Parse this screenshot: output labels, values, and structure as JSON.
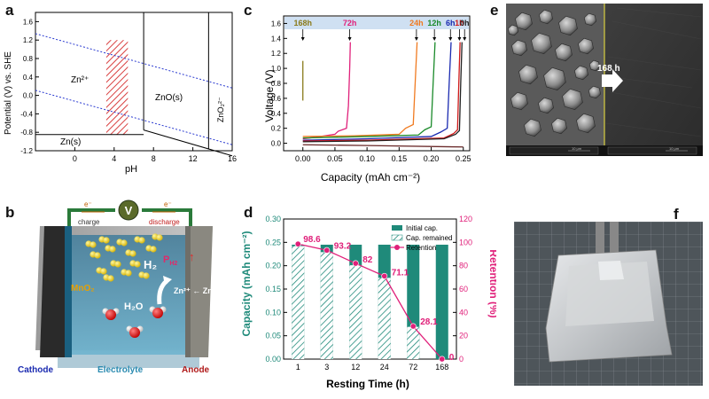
{
  "panel_labels": {
    "a": "a",
    "b": "b",
    "c": "c",
    "d": "d",
    "e": "e",
    "f": "f"
  },
  "panel_a": {
    "ylabel": "Potential (V) vs. SHE",
    "xlabel": "pH",
    "xticks": [
      "0",
      "4",
      "8",
      "12",
      "16"
    ],
    "yticks": [
      "1.6",
      "1.2",
      "0.8",
      "0.4",
      "0.0",
      "-0.4",
      "-0.8",
      "-1.2"
    ],
    "regions": {
      "zn2": "Zn²⁺",
      "zno": "ZnO(s)",
      "zn": "Zn(s)",
      "zno2": "ZnO₂²⁻"
    }
  },
  "panel_b": {
    "voltmeter": "V",
    "electron_left": "e⁻",
    "electron_right": "e⁻",
    "charge": "charge",
    "discharge": "discharge",
    "mno2": "MnO₂",
    "h2": "H₂",
    "ph2": "P",
    "ph2_sub": "H2",
    "up_arrow": "↑",
    "zn2_zn": "Zn²⁺ ← Zn",
    "h2o": "H₂O",
    "cathode": "Cathode",
    "electrolyte": "Electrolyte",
    "anode": "Anode"
  },
  "panel_c": {
    "ylabel": "Voltage (V)",
    "xlabel": "Capacity (mAh cm⁻²)",
    "xticks": [
      "0.00",
      "0.05",
      "0.10",
      "0.15",
      "0.20",
      "0.25"
    ],
    "yticks": [
      "0.0",
      "0.2",
      "0.4",
      "0.6",
      "0.8",
      "1.0",
      "1.2",
      "1.4",
      "1.6"
    ],
    "time_labels": [
      {
        "text": "168h",
        "color": "#8a7a1a"
      },
      {
        "text": "72h",
        "color": "#e0207a"
      },
      {
        "text": "24h",
        "color": "#f07a20"
      },
      {
        "text": "12h",
        "color": "#1a8a2a"
      },
      {
        "text": "6h",
        "color": "#1a2ab0"
      },
      {
        "text": "1h",
        "color": "#d01a1a"
      },
      {
        "text": "0h",
        "color": "#222222"
      }
    ]
  },
  "panel_d": {
    "ylabel_left": "Capacity (mAh cm⁻²)",
    "ylabel_right": "Retention (%)",
    "xlabel": "Resting Time (h)",
    "legend": [
      "Initial cap.",
      "Cap. remained",
      "Retention"
    ],
    "point_labels": [
      "98.6",
      "93.2",
      "82",
      "71.1",
      "28.1",
      "0"
    ]
  },
  "panel_e": {
    "label": "168 h",
    "scale_text": "10 μm"
  },
  "chart_data": [
    {
      "type": "line",
      "title": "",
      "xlabel": "pH",
      "ylabel": "Potential (V) vs. SHE",
      "xlim": [
        -4,
        16
      ],
      "ylim": [
        -1.2,
        1.8
      ],
      "series": [
        {
          "x": [
            -4,
            16
          ],
          "y": [
            1.34,
            0.16
          ]
        },
        {
          "x": [
            -4,
            16
          ],
          "y": [
            0.11,
            -1.07
          ]
        },
        {
          "x": [
            -4,
            7
          ],
          "y": [
            -0.85,
            -0.85
          ]
        },
        {
          "x": [
            7,
            16
          ],
          "y": [
            -0.75,
            -1.31
          ]
        },
        {
          "x": [
            7,
            7
          ],
          "y": [
            -0.75,
            1.8
          ]
        },
        {
          "x": [
            13.6,
            13.6
          ],
          "y": [
            -1.17,
            1.8
          ]
        }
      ],
      "hatched_region": {
        "x": [
          3.2,
          5.4
        ],
        "y": [
          -0.85,
          1.2
        ]
      }
    },
    {
      "type": "line",
      "title": "",
      "xlabel": "Capacity (mAh cm⁻²)",
      "ylabel": "Voltage (V)",
      "xlim": [
        -0.03,
        0.26
      ],
      "ylim": [
        -0.1,
        1.7
      ],
      "series": [
        {
          "name": "168h",
          "color": "#8a7a1a",
          "x": [
            0.0,
            0.0
          ],
          "y": [
            0.57,
            1.1
          ]
        },
        {
          "name": "72h",
          "color": "#e0207a",
          "x": [
            0.0,
            0.02,
            0.05,
            0.055,
            0.068,
            0.071,
            0.073,
            0.074
          ],
          "y": [
            0.06,
            0.08,
            0.12,
            0.16,
            0.2,
            0.5,
            1.0,
            1.35
          ]
        },
        {
          "name": "24h",
          "color": "#f07a20",
          "x": [
            0.0,
            0.08,
            0.15,
            0.16,
            0.172,
            0.175,
            0.178
          ],
          "y": [
            0.09,
            0.1,
            0.12,
            0.2,
            0.25,
            0.8,
            1.35
          ]
        },
        {
          "name": "12h",
          "color": "#1a8a2a",
          "x": [
            0.0,
            0.1,
            0.18,
            0.19,
            0.2,
            0.203,
            0.206
          ],
          "y": [
            0.07,
            0.09,
            0.11,
            0.18,
            0.22,
            0.8,
            1.35
          ]
        },
        {
          "name": "6h",
          "color": "#1a2ab0",
          "x": [
            0.0,
            0.1,
            0.2,
            0.215,
            0.225,
            0.228,
            0.231
          ],
          "y": [
            0.04,
            0.06,
            0.09,
            0.15,
            0.2,
            0.8,
            1.35
          ]
        },
        {
          "name": "1h",
          "color": "#d01a1a",
          "x": [
            0.0,
            0.1,
            0.22,
            0.235,
            0.241,
            0.243,
            0.245
          ],
          "y": [
            0.03,
            0.04,
            0.07,
            0.13,
            0.18,
            0.8,
            1.35
          ]
        },
        {
          "name": "0h",
          "color": "#222222",
          "x": [
            0.0,
            0.1,
            0.22,
            0.238,
            0.244,
            0.246,
            0.248
          ],
          "y": [
            0.02,
            0.03,
            0.06,
            0.12,
            0.17,
            0.8,
            1.35
          ]
        },
        {
          "name": "discharge",
          "color": "#6a2a2a",
          "x": [
            0.0,
            0.1,
            0.25
          ],
          "y": [
            -0.02,
            -0.03,
            -0.05
          ]
        }
      ]
    },
    {
      "type": "bar",
      "title": "",
      "xlabel": "Resting Time (h)",
      "ylabel": "Capacity (mAh cm⁻²)",
      "ylabel_right": "Retention (%)",
      "categories": [
        "1",
        "3",
        "12",
        "24",
        "72",
        "168"
      ],
      "ylim": [
        0,
        0.3
      ],
      "ylim_right": [
        0,
        120
      ],
      "yticks_left": [
        "0.00",
        "0.05",
        "0.10",
        "0.15",
        "0.20",
        "0.25",
        "0.30"
      ],
      "yticks_right": [
        "0",
        "20",
        "40",
        "60",
        "80",
        "100",
        "120"
      ],
      "series": [
        {
          "name": "Initial cap.",
          "color": "#1f8a7a",
          "values": [
            0.245,
            0.245,
            0.245,
            0.245,
            0.245,
            0.245
          ]
        },
        {
          "name": "Cap. remained",
          "color": "#1f8a7a",
          "values": [
            0.242,
            0.229,
            0.201,
            0.174,
            0.069,
            0.0
          ]
        },
        {
          "name": "Retention",
          "color": "#e0207a",
          "values": [
            98.6,
            93.2,
            82,
            71.1,
            28.1,
            0
          ]
        }
      ]
    }
  ]
}
